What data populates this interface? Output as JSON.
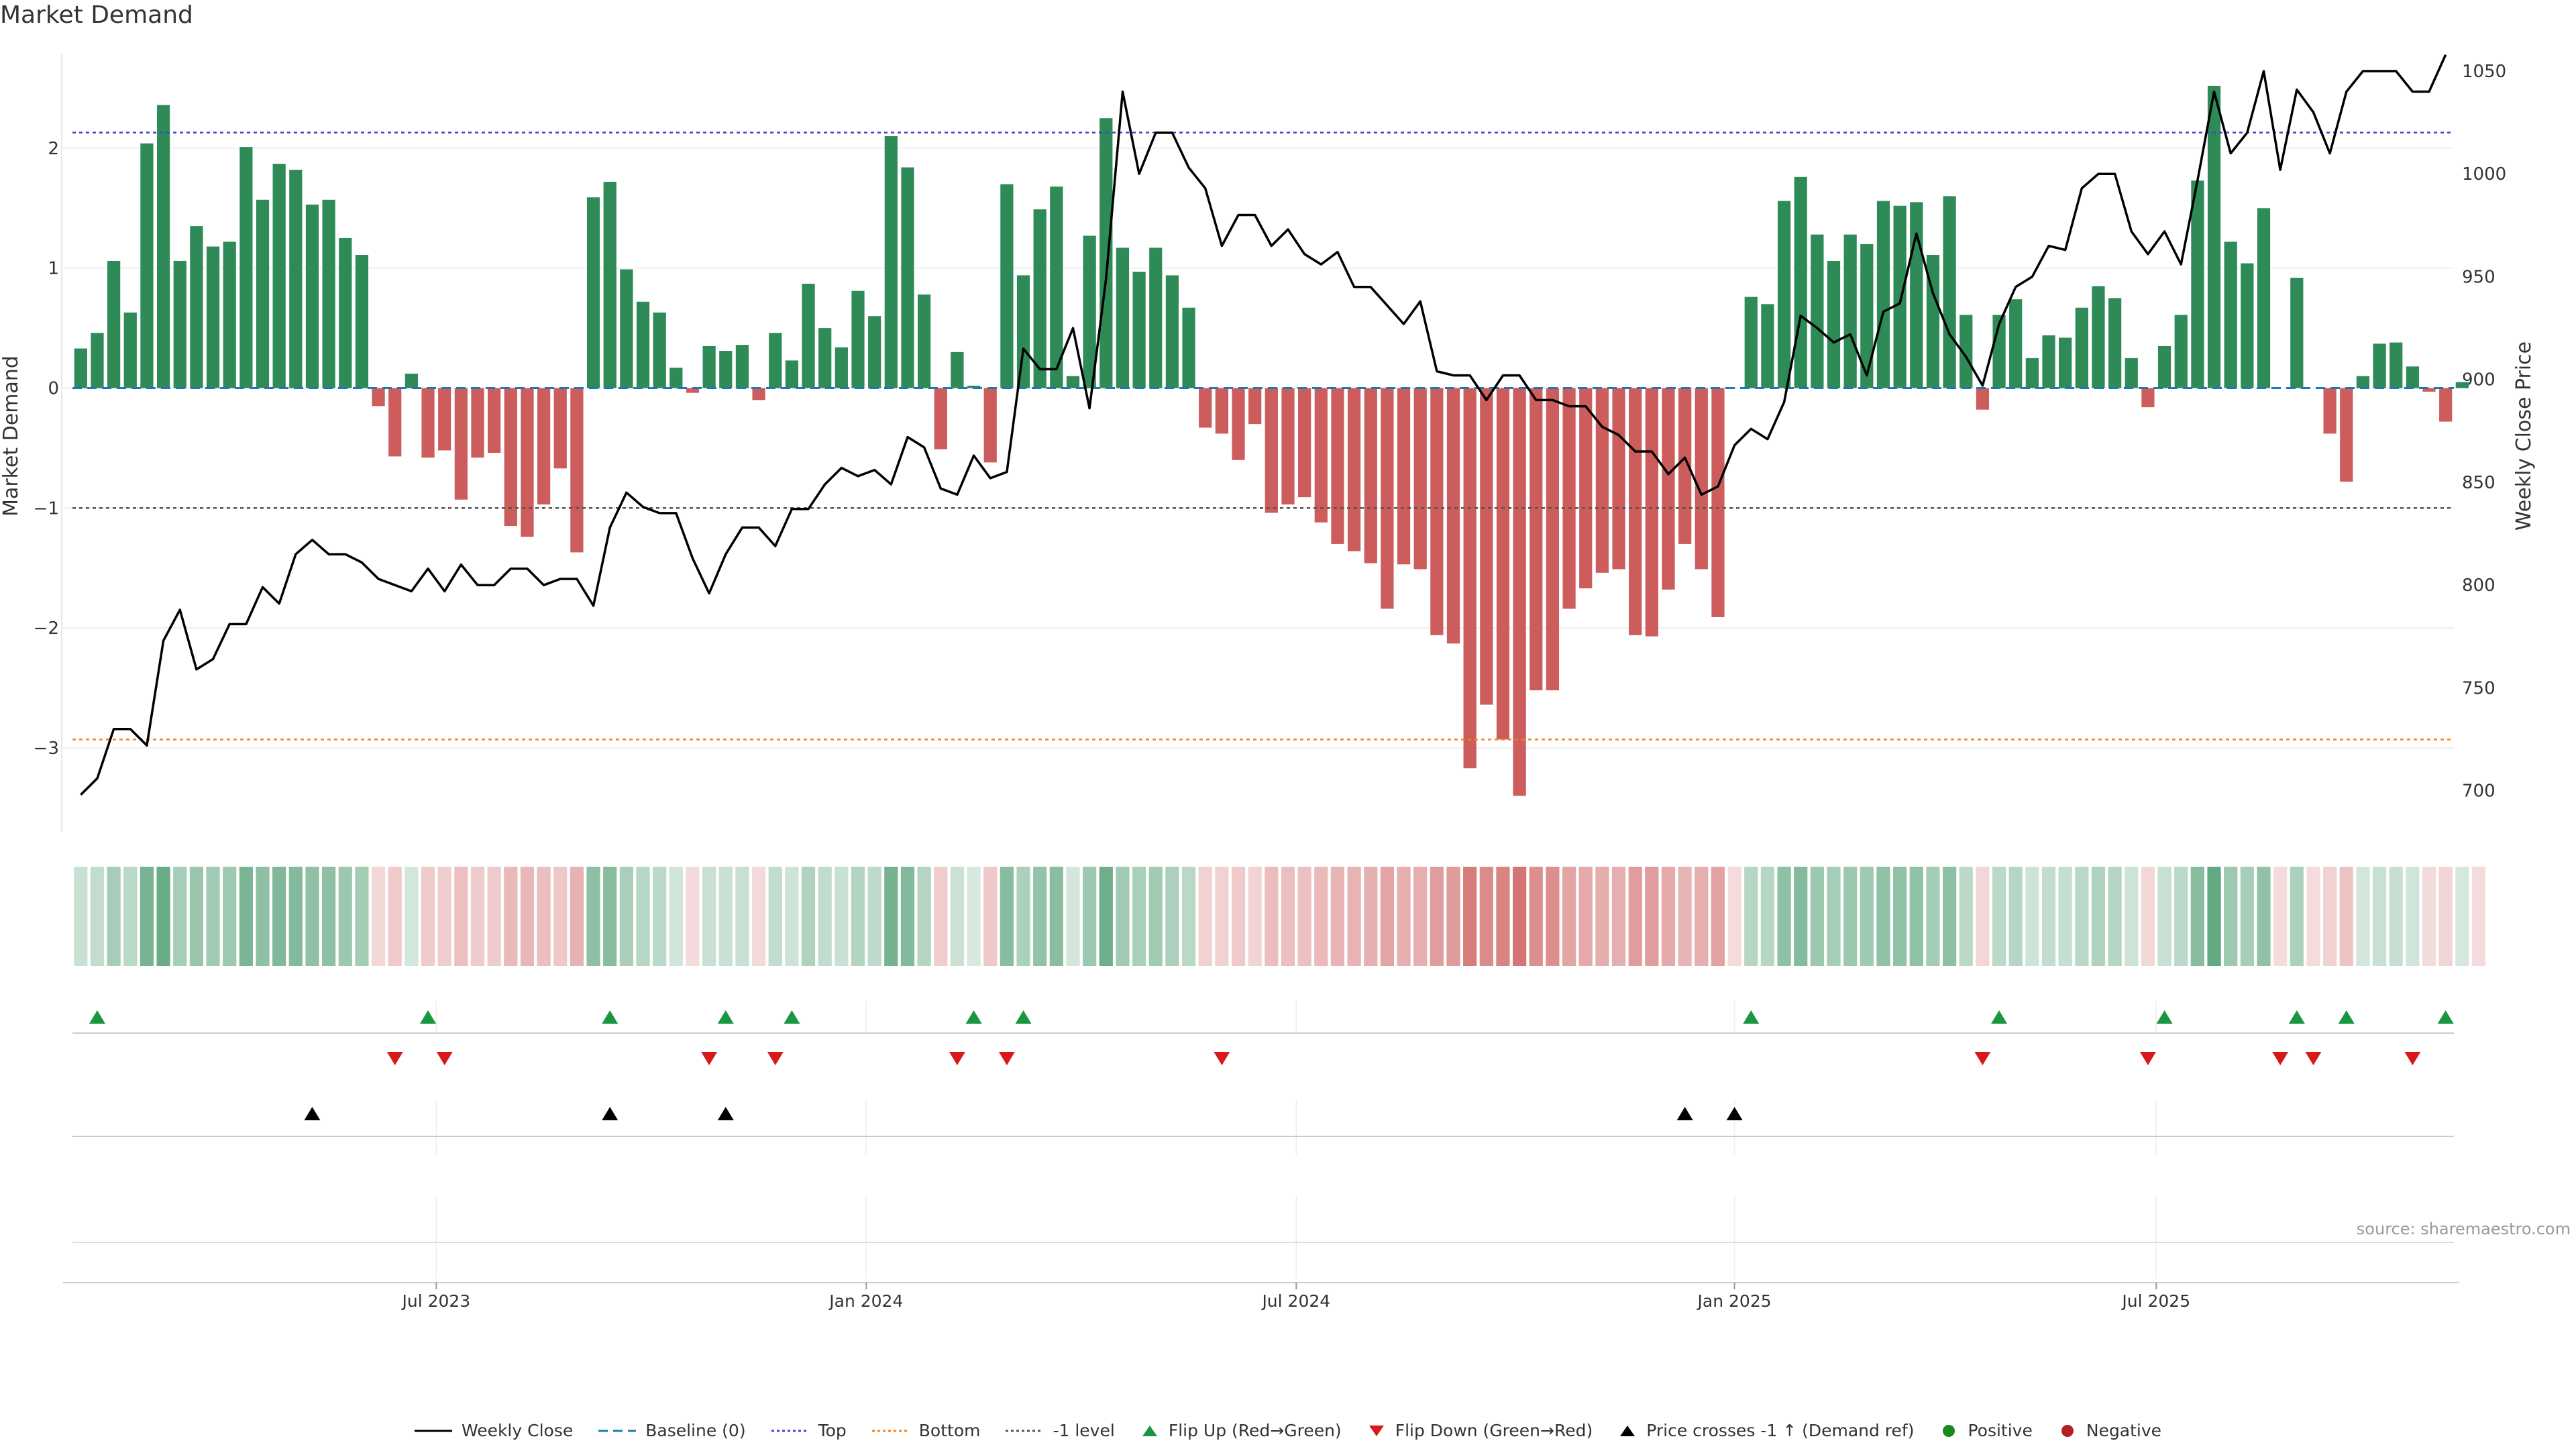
{
  "page": {
    "title": "Market Demand",
    "source": "source: sharemaestro.com"
  },
  "colors": {
    "positive_bar": "#2e8b57",
    "negative_bar": "#cd5c5c",
    "price_line": "#000000",
    "baseline": "#1f77b4",
    "top_line": "#4444cc",
    "bottom_line": "#ff7f0e",
    "minus1_line": "#555555",
    "flip_up": "#1a9641",
    "flip_down": "#d7191c",
    "cross_marker": "#000000",
    "positive_dot": "#1a8a1a",
    "negative_dot": "#b22222"
  },
  "legend": [
    {
      "key": "weekly_close",
      "label": "Weekly Close",
      "icon": "solid-line-icon"
    },
    {
      "key": "baseline",
      "label": "Baseline (0)",
      "icon": "dashed-line-icon"
    },
    {
      "key": "top",
      "label": "Top",
      "icon": "dotted-line-icon"
    },
    {
      "key": "bottom",
      "label": "Bottom",
      "icon": "dotted-line-icon"
    },
    {
      "key": "minus1",
      "label": "-1 level",
      "icon": "dotted-line-icon"
    },
    {
      "key": "flip_up",
      "label": "Flip Up (Red→Green)",
      "icon": "triangle-up-icon"
    },
    {
      "key": "flip_down",
      "label": "Flip Down (Green→Red)",
      "icon": "triangle-down-icon"
    },
    {
      "key": "cross",
      "label": "Price crosses -1 ↑ (Demand ref)",
      "icon": "triangle-up-icon"
    },
    {
      "key": "positive",
      "label": "Positive",
      "icon": "circle-icon"
    },
    {
      "key": "negative",
      "label": "Negative",
      "icon": "circle-icon"
    }
  ],
  "chart_data": {
    "type": "bar",
    "title": "Market Demand",
    "xlabel": "",
    "ylabel": "Market Demand",
    "y2label": "Weekly Close Price",
    "ylim": [
      -3.7,
      2.9
    ],
    "y2lim": [
      680,
      1065
    ],
    "yticks": [
      -3,
      -2,
      -1,
      0,
      1,
      2
    ],
    "ytick_labels": [
      "−3",
      "−2",
      "−1",
      "0",
      "1",
      "2"
    ],
    "y2ticks": [
      700,
      750,
      800,
      850,
      900,
      950,
      1000,
      1050
    ],
    "x_tick_index": [
      22,
      48,
      74,
      100.5,
      126
    ],
    "x_tick_labels": [
      "Jul 2023",
      "Jan 2024",
      "Jul 2024",
      "Jan 2025",
      "Jul 2025"
    ],
    "reference_levels": {
      "baseline": 0,
      "top": 2.13,
      "bottom": -2.93,
      "minus1": -1
    },
    "weeks": 144,
    "series": [
      {
        "name": "Market Demand",
        "type": "bar",
        "values": [
          0.33,
          0.46,
          1.06,
          0.63,
          2.04,
          2.36,
          1.06,
          1.35,
          1.18,
          1.22,
          2.01,
          1.57,
          1.87,
          1.82,
          1.53,
          1.57,
          1.25,
          1.11,
          -0.15,
          -0.57,
          0.12,
          -0.58,
          -0.52,
          -0.93,
          -0.58,
          -0.54,
          -1.15,
          -1.24,
          -0.97,
          -0.67,
          -1.37,
          1.59,
          1.72,
          0.99,
          0.72,
          0.63,
          0.17,
          -0.04,
          0.35,
          0.31,
          0.36,
          -0.1,
          0.46,
          0.23,
          0.87,
          0.5,
          0.34,
          0.81,
          0.6,
          2.1,
          1.84,
          0.78,
          -0.51,
          0.3,
          0.02,
          -0.62,
          1.7,
          0.94,
          1.49,
          1.68,
          0.1,
          1.27,
          2.25,
          1.17,
          0.97,
          1.17,
          0.94,
          0.67,
          -0.33,
          -0.38,
          -0.6,
          -0.3,
          -1.04,
          -0.97,
          -0.91,
          -1.12,
          -1.3,
          -1.36,
          -1.46,
          -1.84,
          -1.47,
          -1.51,
          -2.06,
          -2.13,
          -3.17,
          -2.64,
          -2.93,
          -3.4,
          -2.52,
          -2.52,
          -1.84,
          -1.67,
          -1.54,
          -1.51,
          -2.06,
          -2.07,
          -1.68,
          -1.3,
          -1.51,
          -1.91,
          0,
          0.76,
          0.7,
          1.56,
          1.76,
          1.28,
          1.06,
          1.28,
          1.2,
          1.56,
          1.52,
          1.55,
          1.11,
          1.6,
          0.61,
          -0.18,
          0.61,
          0.74,
          0.25,
          0.44,
          0.42,
          0.67,
          0.85,
          0.75,
          0.25,
          -0.16,
          0.35,
          0.61,
          1.73,
          2.52,
          1.22,
          1.04,
          1.5,
          0,
          0.92,
          0,
          -0.38,
          -0.78,
          0.1,
          0.37,
          0.38,
          0.18,
          -0.03,
          -0.28,
          0.05,
          0
        ]
      },
      {
        "name": "Weekly Close",
        "type": "line",
        "values": [
          698,
          706,
          730,
          730,
          722,
          773,
          788,
          759,
          764,
          781,
          781,
          799,
          791,
          815,
          822,
          815,
          815,
          811,
          803,
          800,
          797,
          808,
          797,
          810,
          800,
          800,
          808,
          808,
          800,
          803,
          803,
          790,
          828,
          845,
          838,
          835,
          835,
          813,
          796,
          815,
          828,
          828,
          819,
          837,
          837,
          849,
          857,
          853,
          856,
          849,
          872,
          867,
          847,
          844,
          863,
          852,
          855,
          915,
          905,
          905,
          925,
          886,
          949,
          1040,
          1000,
          1020,
          1020,
          1003,
          993,
          965,
          980,
          980,
          965,
          973,
          961,
          956,
          962,
          945,
          945,
          936,
          927,
          938,
          904,
          902,
          902,
          890,
          902,
          902,
          890,
          890,
          887,
          887,
          877,
          873,
          865,
          865,
          854,
          862,
          844,
          848,
          868,
          876,
          871,
          889,
          931,
          925,
          918,
          922,
          902,
          933,
          937,
          971,
          942,
          922,
          911,
          897,
          927,
          945,
          950,
          965,
          963,
          993,
          1000,
          1000,
          972,
          961,
          972,
          956,
          997,
          1040,
          1010,
          1020,
          1050,
          1002,
          1041,
          1030,
          1010,
          1040,
          1050,
          1050,
          1050,
          1040,
          1040,
          1058
        ]
      },
      {
        "name": "Flip Up (Red→Green)",
        "type": "marker",
        "indices": [
          1,
          21,
          32,
          39,
          43,
          54,
          57,
          101,
          116,
          126,
          134,
          137,
          143
        ]
      },
      {
        "name": "Flip Down (Green→Red)",
        "type": "marker",
        "indices": [
          19,
          22,
          38,
          42,
          53,
          56,
          69,
          115,
          125,
          133,
          135,
          141
        ]
      },
      {
        "name": "Price crosses -1 ↑ (Demand ref)",
        "type": "marker",
        "indices": [
          14,
          32,
          39,
          97,
          100
        ]
      }
    ]
  }
}
